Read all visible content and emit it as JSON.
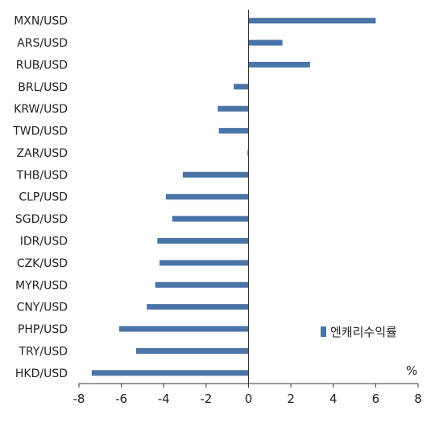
{
  "chart_data": {
    "type": "bar",
    "orientation": "horizontal",
    "categories": [
      "MXN/USD",
      "ARS/USD",
      "RUB/USD",
      "BRL/USD",
      "KRW/USD",
      "TWD/USD",
      "ZAR/USD",
      "THB/USD",
      "CLP/USD",
      "SGD/USD",
      "IDR/USD",
      "CZK/USD",
      "MYR/USD",
      "CNY/USD",
      "PHP/USD",
      "TRY/USD",
      "HKD/USD"
    ],
    "series": [
      {
        "name": "엔캐리수익률",
        "values": [
          6.0,
          1.6,
          2.9,
          -0.7,
          -1.45,
          -1.4,
          -0.05,
          -3.1,
          -3.9,
          -3.6,
          -4.3,
          -4.2,
          -4.4,
          -4.8,
          -6.1,
          -5.3,
          -7.4
        ]
      }
    ],
    "xlim": [
      -8,
      8
    ],
    "xticks": [
      -8,
      -6,
      -4,
      -2,
      0,
      2,
      4,
      6,
      8
    ],
    "unit_label": "%",
    "legend_position": "bottom-right",
    "grid": false,
    "colors": {
      "bar": "#4a74a8",
      "axis": "#333333"
    }
  }
}
